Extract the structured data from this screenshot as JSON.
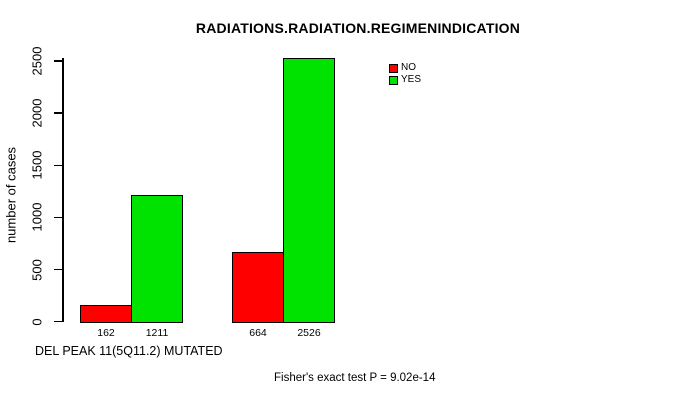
{
  "chart_data": {
    "type": "bar",
    "title": "RADIATIONS.RADIATION.REGIMENINDICATION",
    "ylabel": "number of cases",
    "xlabel": "DEL PEAK 11(5Q11.2) MUTATED",
    "ylim": [
      0,
      2500
    ],
    "yticks": [
      0,
      500,
      1000,
      1500,
      2000,
      2500
    ],
    "grid": false,
    "legend_position": "top-right-inside",
    "legend": [
      {
        "label": "NO",
        "color": "#ff0000"
      },
      {
        "label": "YES",
        "color": "#00e300"
      }
    ],
    "series_colors": {
      "NO": "#ff0000",
      "YES": "#00e300"
    },
    "groups": [
      {
        "bars": [
          {
            "series": "NO",
            "value": 162,
            "label": "162"
          },
          {
            "series": "YES",
            "value": 1211,
            "label": "1211"
          }
        ]
      },
      {
        "bars": [
          {
            "series": "NO",
            "value": 664,
            "label": "664"
          },
          {
            "series": "YES",
            "value": 2526,
            "label": "2526"
          }
        ]
      }
    ],
    "annotation": "Fisher's exact test P = 9.02e-14"
  }
}
